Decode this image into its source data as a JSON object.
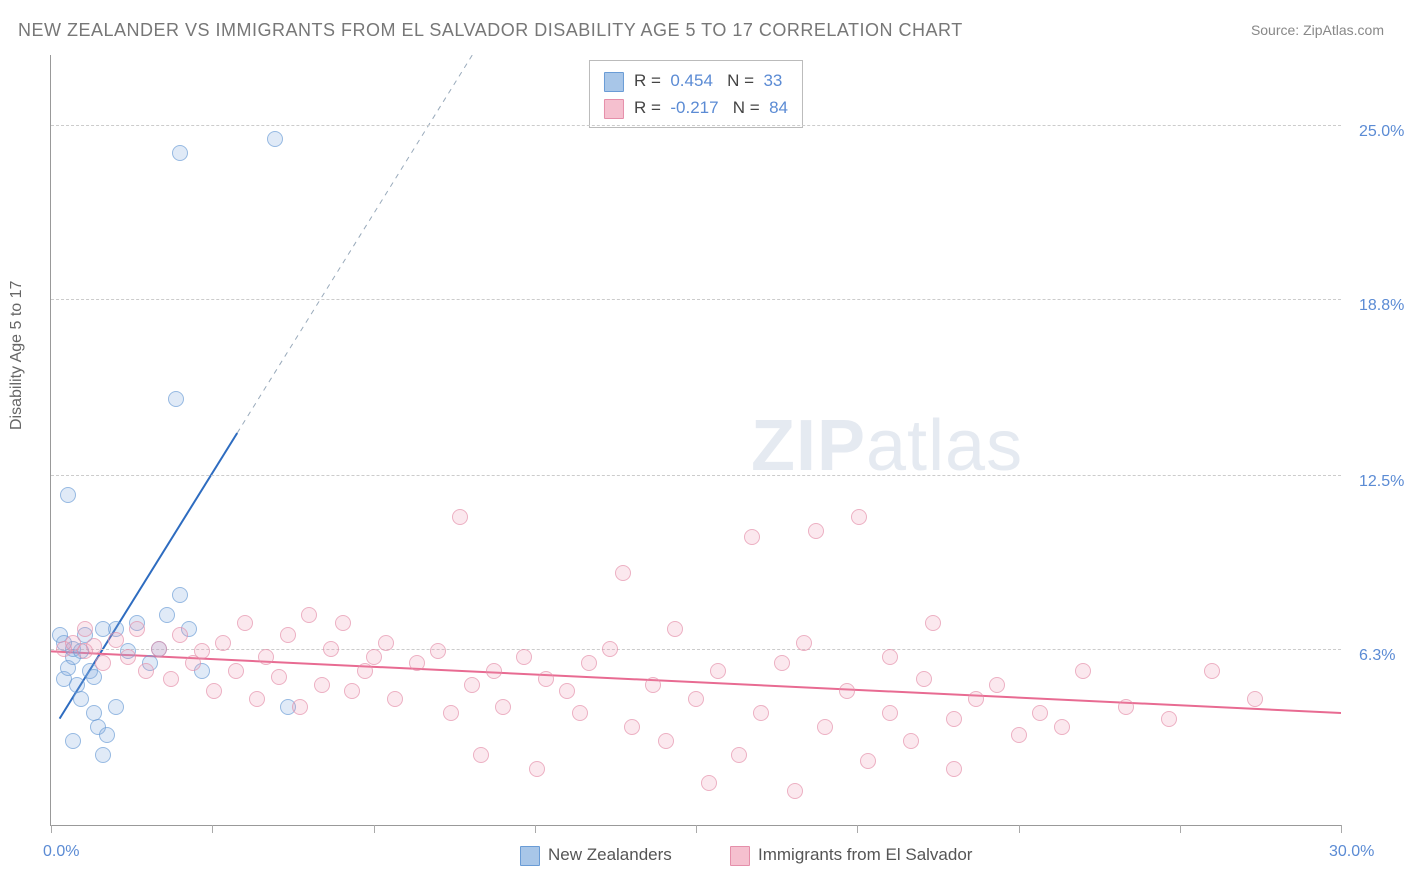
{
  "title": "NEW ZEALANDER VS IMMIGRANTS FROM EL SALVADOR DISABILITY AGE 5 TO 17 CORRELATION CHART",
  "source": "Source: ZipAtlas.com",
  "ylabel": "Disability Age 5 to 17",
  "watermark_a": "ZIP",
  "watermark_b": "atlas",
  "chart": {
    "type": "scatter-with-trendlines",
    "xlim": [
      0,
      30
    ],
    "ylim": [
      0,
      27.5
    ],
    "x_ticks": [
      0,
      3.75,
      7.5,
      11.25,
      15,
      18.75,
      22.5,
      26.25,
      30
    ],
    "x_tick_labels": {
      "0": "0.0%",
      "30": "30.0%"
    },
    "y_gridlines": [
      6.3,
      12.5,
      18.8,
      25.0
    ],
    "y_tick_labels": [
      "6.3%",
      "12.5%",
      "18.8%",
      "25.0%"
    ],
    "grid_color": "#cccccc",
    "background_color": "#ffffff",
    "axis_color": "#999999",
    "series": [
      {
        "name": "New Zealanders",
        "color_fill": "#a8c6e8",
        "color_stroke": "#6a9cd6",
        "R": "0.454",
        "N": "33",
        "trend": {
          "x1": 0.2,
          "y1": 3.8,
          "x2": 10.0,
          "y2": 28.0,
          "dashed_extension": true,
          "color": "#2e6cc0",
          "width": 2
        },
        "points": [
          [
            0.3,
            5.2
          ],
          [
            0.4,
            5.6
          ],
          [
            0.5,
            6.0
          ],
          [
            0.6,
            5.0
          ],
          [
            0.5,
            6.3
          ],
          [
            0.2,
            6.8
          ],
          [
            0.3,
            6.5
          ],
          [
            0.7,
            6.2
          ],
          [
            0.8,
            6.8
          ],
          [
            0.9,
            5.5
          ],
          [
            1.0,
            4.0
          ],
          [
            1.1,
            3.5
          ],
          [
            1.3,
            3.2
          ],
          [
            1.5,
            4.2
          ],
          [
            0.5,
            3.0
          ],
          [
            1.2,
            2.5
          ],
          [
            0.4,
            11.8
          ],
          [
            1.5,
            7.0
          ],
          [
            1.8,
            6.2
          ],
          [
            2.0,
            7.2
          ],
          [
            2.3,
            5.8
          ],
          [
            2.5,
            6.3
          ],
          [
            2.7,
            7.5
          ],
          [
            3.0,
            8.2
          ],
          [
            3.2,
            7.0
          ],
          [
            3.5,
            5.5
          ],
          [
            1.0,
            5.3
          ],
          [
            0.7,
            4.5
          ],
          [
            1.2,
            7.0
          ],
          [
            5.5,
            4.2
          ],
          [
            2.9,
            15.2
          ],
          [
            3.0,
            24.0
          ],
          [
            5.2,
            24.5
          ]
        ]
      },
      {
        "name": "Immigrants from El Salvador",
        "color_fill": "#f5c0cf",
        "color_stroke": "#e58faa",
        "R": "-0.217",
        "N": "84",
        "trend": {
          "x1": 0,
          "y1": 6.2,
          "x2": 30,
          "y2": 4.0,
          "dashed_extension": false,
          "color": "#e86b92",
          "width": 2
        },
        "points": [
          [
            0.3,
            6.3
          ],
          [
            0.5,
            6.5
          ],
          [
            0.8,
            6.2
          ],
          [
            1.0,
            6.4
          ],
          [
            1.2,
            5.8
          ],
          [
            1.5,
            6.6
          ],
          [
            1.8,
            6.0
          ],
          [
            2.0,
            7.0
          ],
          [
            2.2,
            5.5
          ],
          [
            2.5,
            6.3
          ],
          [
            2.8,
            5.2
          ],
          [
            3.0,
            6.8
          ],
          [
            3.3,
            5.8
          ],
          [
            3.5,
            6.2
          ],
          [
            3.8,
            4.8
          ],
          [
            4.0,
            6.5
          ],
          [
            4.3,
            5.5
          ],
          [
            4.5,
            7.2
          ],
          [
            4.8,
            4.5
          ],
          [
            5.0,
            6.0
          ],
          [
            5.3,
            5.3
          ],
          [
            5.5,
            6.8
          ],
          [
            5.8,
            4.2
          ],
          [
            6.0,
            7.5
          ],
          [
            6.3,
            5.0
          ],
          [
            6.5,
            6.3
          ],
          [
            6.8,
            7.2
          ],
          [
            7.0,
            4.8
          ],
          [
            7.3,
            5.5
          ],
          [
            7.5,
            6.0
          ],
          [
            7.8,
            6.5
          ],
          [
            8.0,
            4.5
          ],
          [
            8.5,
            5.8
          ],
          [
            9.0,
            6.2
          ],
          [
            9.3,
            4.0
          ],
          [
            9.5,
            11.0
          ],
          [
            9.8,
            5.0
          ],
          [
            10.0,
            2.5
          ],
          [
            10.3,
            5.5
          ],
          [
            10.5,
            4.2
          ],
          [
            11.0,
            6.0
          ],
          [
            11.3,
            2.0
          ],
          [
            11.5,
            5.2
          ],
          [
            12.0,
            4.8
          ],
          [
            12.3,
            4.0
          ],
          [
            12.5,
            5.8
          ],
          [
            13.0,
            6.3
          ],
          [
            13.3,
            9.0
          ],
          [
            13.5,
            3.5
          ],
          [
            14.0,
            5.0
          ],
          [
            14.3,
            3.0
          ],
          [
            14.5,
            7.0
          ],
          [
            15.0,
            4.5
          ],
          [
            15.3,
            1.5
          ],
          [
            15.5,
            5.5
          ],
          [
            16.0,
            2.5
          ],
          [
            16.3,
            10.3
          ],
          [
            16.5,
            4.0
          ],
          [
            17.0,
            5.8
          ],
          [
            17.3,
            1.2
          ],
          [
            17.5,
            6.5
          ],
          [
            17.8,
            10.5
          ],
          [
            18.0,
            3.5
          ],
          [
            18.5,
            4.8
          ],
          [
            18.8,
            11.0
          ],
          [
            19.0,
            2.3
          ],
          [
            19.5,
            4.0
          ],
          [
            20.0,
            3.0
          ],
          [
            20.3,
            5.2
          ],
          [
            20.5,
            7.2
          ],
          [
            21.0,
            3.8
          ],
          [
            21.5,
            4.5
          ],
          [
            22.0,
            5.0
          ],
          [
            22.5,
            3.2
          ],
          [
            23.0,
            4.0
          ],
          [
            23.5,
            3.5
          ],
          [
            24.0,
            5.5
          ],
          [
            25.0,
            4.2
          ],
          [
            26.0,
            3.8
          ],
          [
            27.0,
            5.5
          ],
          [
            28.0,
            4.5
          ],
          [
            21.0,
            2.0
          ],
          [
            19.5,
            6.0
          ],
          [
            0.8,
            7.0
          ]
        ]
      }
    ]
  },
  "legend_top": [
    {
      "swatch_fill": "#a8c6e8",
      "swatch_stroke": "#6a9cd6",
      "r_label": "R =",
      "r_val": "0.454",
      "n_label": "N =",
      "n_val": "33"
    },
    {
      "swatch_fill": "#f5c0cf",
      "swatch_stroke": "#e58faa",
      "r_label": "R =",
      "r_val": "-0.217",
      "n_label": "N =",
      "n_val": "84"
    }
  ],
  "legend_bottom": [
    {
      "swatch_fill": "#a8c6e8",
      "swatch_stroke": "#6a9cd6",
      "label": "New Zealanders"
    },
    {
      "swatch_fill": "#f5c0cf",
      "swatch_stroke": "#e58faa",
      "label": "Immigrants from El Salvador"
    }
  ]
}
